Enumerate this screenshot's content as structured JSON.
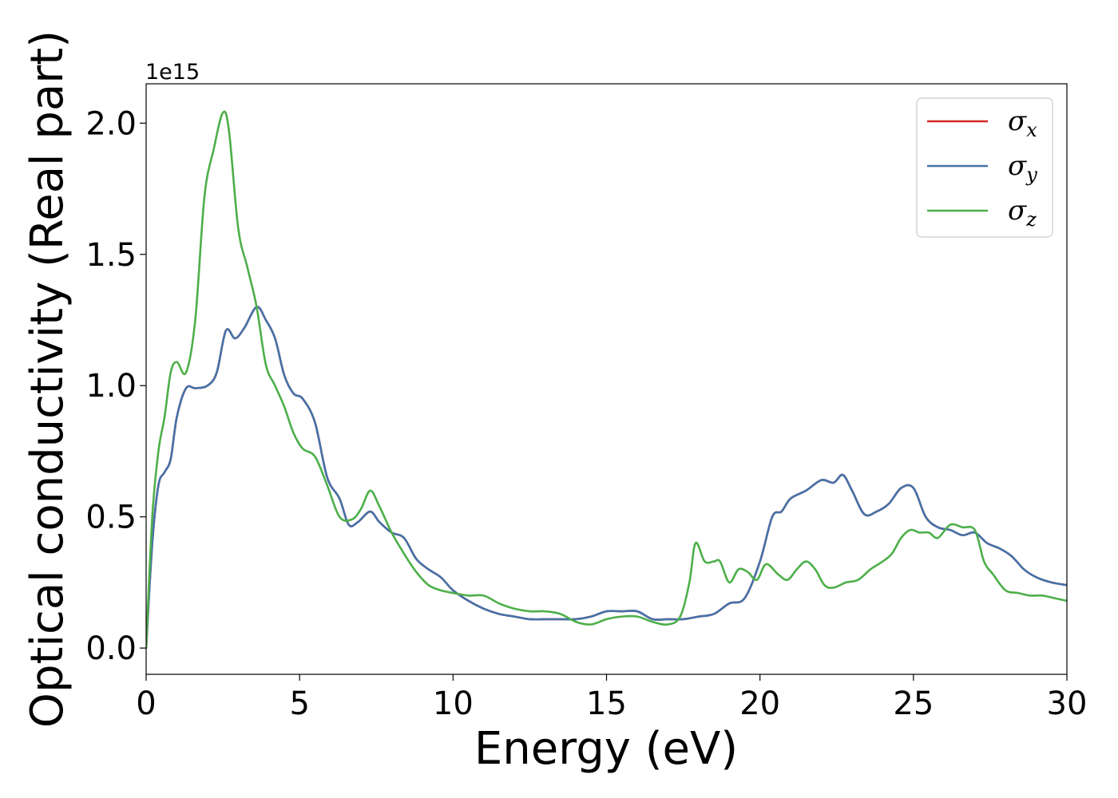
{
  "chart_data": {
    "type": "line",
    "xlabel": "Energy (eV)",
    "ylabel": "Optical conductivity (Real part)",
    "y_offset_label": "1e15",
    "xlim": [
      0,
      30
    ],
    "ylim": [
      -0.1,
      2.15
    ],
    "xticks": [
      0,
      5,
      10,
      15,
      20,
      25,
      30
    ],
    "yticks": [
      0.0,
      0.5,
      1.0,
      1.5,
      2.0
    ],
    "xtick_labels": [
      "0",
      "5",
      "10",
      "15",
      "20",
      "25",
      "30"
    ],
    "ytick_labels": [
      "0.0",
      "0.5",
      "1.0",
      "1.5",
      "2.0"
    ],
    "grid": false,
    "legend_position": "top-right",
    "series": [
      {
        "name": "σx",
        "sym": "σ",
        "sub": "x",
        "color": "#d62728",
        "x": [
          0,
          0.2,
          0.4,
          0.6,
          0.8,
          1.0,
          1.3,
          1.6,
          2.0,
          2.3,
          2.6,
          2.9,
          3.2,
          3.6,
          3.9,
          4.2,
          4.5,
          4.8,
          5.1,
          5.5,
          5.9,
          6.3,
          6.6,
          6.9,
          7.3,
          7.6,
          8.0,
          8.4,
          8.8,
          9.2,
          9.6,
          10.0,
          10.5,
          11.0,
          11.5,
          12.0,
          12.5,
          13.0,
          13.5,
          14.0,
          14.5,
          15.0,
          15.5,
          16.0,
          16.5,
          17.0,
          17.5,
          18.0,
          18.5,
          19.0,
          19.5,
          20.0,
          20.4,
          20.7,
          21.0,
          21.5,
          22.0,
          22.4,
          22.7,
          23.0,
          23.4,
          23.8,
          24.2,
          24.6,
          25.0,
          25.4,
          25.8,
          26.2,
          26.6,
          27.0,
          27.4,
          27.8,
          28.2,
          28.6,
          29.0,
          29.5,
          30.0
        ],
        "values": [
          0.0,
          0.4,
          0.62,
          0.67,
          0.72,
          0.88,
          0.99,
          0.99,
          1.0,
          1.05,
          1.21,
          1.18,
          1.22,
          1.3,
          1.25,
          1.18,
          1.04,
          0.97,
          0.95,
          0.86,
          0.65,
          0.57,
          0.47,
          0.48,
          0.52,
          0.48,
          0.44,
          0.42,
          0.34,
          0.3,
          0.27,
          0.22,
          0.18,
          0.15,
          0.13,
          0.12,
          0.11,
          0.11,
          0.11,
          0.11,
          0.12,
          0.14,
          0.14,
          0.14,
          0.11,
          0.11,
          0.11,
          0.12,
          0.13,
          0.17,
          0.19,
          0.33,
          0.5,
          0.52,
          0.57,
          0.6,
          0.64,
          0.63,
          0.66,
          0.6,
          0.51,
          0.52,
          0.55,
          0.61,
          0.61,
          0.5,
          0.46,
          0.45,
          0.43,
          0.44,
          0.4,
          0.38,
          0.35,
          0.3,
          0.27,
          0.25,
          0.24
        ]
      },
      {
        "name": "σy",
        "sym": "σ",
        "sub": "y",
        "color": "#4472a8",
        "x": [
          0,
          0.2,
          0.4,
          0.6,
          0.8,
          1.0,
          1.3,
          1.6,
          2.0,
          2.3,
          2.6,
          2.9,
          3.2,
          3.6,
          3.9,
          4.2,
          4.5,
          4.8,
          5.1,
          5.5,
          5.9,
          6.3,
          6.6,
          6.9,
          7.3,
          7.6,
          8.0,
          8.4,
          8.8,
          9.2,
          9.6,
          10.0,
          10.5,
          11.0,
          11.5,
          12.0,
          12.5,
          13.0,
          13.5,
          14.0,
          14.5,
          15.0,
          15.5,
          16.0,
          16.5,
          17.0,
          17.5,
          18.0,
          18.5,
          19.0,
          19.5,
          20.0,
          20.4,
          20.7,
          21.0,
          21.5,
          22.0,
          22.4,
          22.7,
          23.0,
          23.4,
          23.8,
          24.2,
          24.6,
          25.0,
          25.4,
          25.8,
          26.2,
          26.6,
          27.0,
          27.4,
          27.8,
          28.2,
          28.6,
          29.0,
          29.5,
          30.0
        ],
        "values": [
          0.0,
          0.4,
          0.62,
          0.67,
          0.72,
          0.88,
          0.99,
          0.99,
          1.0,
          1.05,
          1.21,
          1.18,
          1.22,
          1.3,
          1.25,
          1.18,
          1.04,
          0.97,
          0.95,
          0.86,
          0.65,
          0.57,
          0.47,
          0.48,
          0.52,
          0.48,
          0.44,
          0.42,
          0.34,
          0.3,
          0.27,
          0.22,
          0.18,
          0.15,
          0.13,
          0.12,
          0.11,
          0.11,
          0.11,
          0.11,
          0.12,
          0.14,
          0.14,
          0.14,
          0.11,
          0.11,
          0.11,
          0.12,
          0.13,
          0.17,
          0.19,
          0.33,
          0.5,
          0.52,
          0.57,
          0.6,
          0.64,
          0.63,
          0.66,
          0.6,
          0.51,
          0.52,
          0.55,
          0.61,
          0.61,
          0.5,
          0.46,
          0.45,
          0.43,
          0.44,
          0.4,
          0.38,
          0.35,
          0.3,
          0.27,
          0.25,
          0.24
        ]
      },
      {
        "name": "σz",
        "sym": "σ",
        "sub": "z",
        "color": "#4daf4a",
        "x": [
          0,
          0.2,
          0.4,
          0.6,
          0.8,
          1.0,
          1.3,
          1.6,
          1.9,
          2.2,
          2.5,
          2.7,
          3.0,
          3.3,
          3.6,
          3.9,
          4.2,
          4.5,
          4.8,
          5.1,
          5.5,
          5.9,
          6.3,
          6.7,
          7.0,
          7.3,
          7.6,
          8.0,
          8.4,
          8.8,
          9.2,
          9.6,
          10.0,
          10.5,
          11.0,
          11.5,
          12.0,
          12.5,
          13.0,
          13.5,
          14.0,
          14.5,
          15.0,
          15.5,
          16.0,
          16.5,
          17.0,
          17.4,
          17.7,
          17.9,
          18.2,
          18.5,
          18.7,
          19.0,
          19.3,
          19.6,
          19.9,
          20.2,
          20.6,
          20.9,
          21.2,
          21.5,
          21.8,
          22.1,
          22.4,
          22.8,
          23.2,
          23.6,
          24.0,
          24.3,
          24.6,
          24.9,
          25.2,
          25.5,
          25.8,
          26.2,
          26.6,
          27.0,
          27.3,
          27.6,
          28.0,
          28.4,
          28.8,
          29.2,
          29.6,
          30.0
        ],
        "values": [
          0.0,
          0.5,
          0.75,
          0.88,
          1.05,
          1.09,
          1.05,
          1.25,
          1.72,
          1.9,
          2.04,
          1.97,
          1.6,
          1.45,
          1.3,
          1.08,
          1.0,
          0.92,
          0.82,
          0.76,
          0.73,
          0.62,
          0.5,
          0.49,
          0.53,
          0.6,
          0.54,
          0.44,
          0.36,
          0.29,
          0.24,
          0.22,
          0.21,
          0.2,
          0.2,
          0.17,
          0.15,
          0.14,
          0.14,
          0.13,
          0.1,
          0.09,
          0.11,
          0.12,
          0.12,
          0.1,
          0.09,
          0.12,
          0.25,
          0.4,
          0.33,
          0.33,
          0.33,
          0.25,
          0.3,
          0.29,
          0.26,
          0.32,
          0.28,
          0.26,
          0.3,
          0.33,
          0.3,
          0.24,
          0.23,
          0.25,
          0.26,
          0.3,
          0.33,
          0.36,
          0.42,
          0.45,
          0.44,
          0.44,
          0.42,
          0.47,
          0.46,
          0.45,
          0.33,
          0.28,
          0.22,
          0.21,
          0.2,
          0.2,
          0.19,
          0.18
        ]
      }
    ]
  }
}
